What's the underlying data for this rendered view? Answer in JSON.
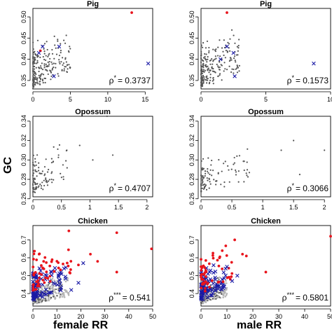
{
  "figure": {
    "ylabel": "GC",
    "xlabels": {
      "female": "female RR",
      "male": "male RR"
    }
  },
  "colors": {
    "gray": "#555555",
    "lightgray": "#b5b5b5",
    "red": "#e8141c",
    "blue": "#1a1aa6"
  },
  "chart_data": [
    {
      "id": "pig-female",
      "type": "scatter",
      "title": "Pig",
      "xlim": [
        0,
        16
      ],
      "ylim": [
        0.33,
        0.52
      ],
      "xticks": [
        0,
        5,
        10,
        15
      ],
      "yticks": [
        0.35,
        0.4,
        0.45,
        0.5
      ],
      "ytick_labels": [
        "0.35",
        "0.40",
        "0.45",
        "0.50"
      ],
      "annotation": {
        "prefix": "ρ",
        "stars": "*",
        "value": "= 0.3737"
      },
      "series": [
        {
          "style": "gray-dot",
          "n": 220,
          "xmax": 5,
          "ymin": 0.33,
          "ymax": 0.48
        },
        {
          "style": "red-dot",
          "points": [
            [
              13.2,
              0.51
            ],
            [
              1.0,
              0.42
            ]
          ]
        },
        {
          "style": "blue-x",
          "points": [
            [
              3.5,
              0.43
            ],
            [
              2.8,
              0.36
            ],
            [
              0.8,
              0.415
            ],
            [
              15.4,
              0.39
            ],
            [
              1.3,
              0.43
            ]
          ]
        }
      ]
    },
    {
      "id": "pig-male",
      "type": "scatter",
      "title": "Pig",
      "xlim": [
        0,
        10
      ],
      "ylim": [
        0.33,
        0.52
      ],
      "xticks": [
        0,
        5,
        10
      ],
      "yticks": [
        0.35,
        0.4,
        0.45,
        0.5
      ],
      "ytick_labels": [
        "0.35",
        "0.40",
        "0.45",
        "0.50"
      ],
      "annotation": {
        "prefix": "ρ",
        "stars": "*",
        "value": "= 0.1573"
      },
      "series": [
        {
          "style": "gray-dot",
          "n": 220,
          "xmax": 3,
          "ymin": 0.33,
          "ymax": 0.48
        },
        {
          "style": "red-dot",
          "points": [
            [
              2.0,
              0.51
            ]
          ]
        },
        {
          "style": "blue-x",
          "points": [
            [
              2.0,
              0.43
            ],
            [
              2.5,
              0.415
            ],
            [
              8.7,
              0.39
            ],
            [
              1.5,
              0.4
            ],
            [
              2.6,
              0.36
            ]
          ]
        }
      ]
    },
    {
      "id": "opossum-female",
      "type": "scatter",
      "title": "Opossum",
      "xlim": [
        0,
        2.1
      ],
      "ylim": [
        0.262,
        0.345
      ],
      "xticks": [
        0,
        0.5,
        1.0,
        1.5,
        2.0
      ],
      "xtick_labels": [
        "0",
        "0.5",
        "1",
        "1.5",
        "2"
      ],
      "yticks": [
        0.26,
        0.28,
        0.3,
        0.32,
        0.34
      ],
      "ytick_labels": [
        "0.26",
        "0.28",
        "0.30",
        "0.32",
        "0.34"
      ],
      "annotation": {
        "prefix": "ρ",
        "stars": "*",
        "value": "= 0.4707"
      },
      "series": [
        {
          "style": "gray-dot",
          "n": 100,
          "xmax": 0.6,
          "ymin": 0.265,
          "ymax": 0.32
        },
        {
          "style": "gray-dot",
          "points": [
            [
              1.3,
              0.345
            ],
            [
              1.4,
              0.305
            ],
            [
              0.82,
              0.315
            ],
            [
              1.05,
              0.3
            ],
            [
              0.45,
              0.305
            ]
          ]
        }
      ]
    },
    {
      "id": "opossum-male",
      "type": "scatter",
      "title": "Opossum",
      "xlim": [
        0,
        2.1
      ],
      "ylim": [
        0.262,
        0.345
      ],
      "xticks": [
        0,
        0.5,
        1.0,
        1.5,
        2.0
      ],
      "xtick_labels": [
        "0",
        "0.5",
        "1",
        "1.5",
        "2"
      ],
      "yticks": [
        0.26,
        0.28,
        0.3,
        0.32,
        0.34
      ],
      "ytick_labels": [
        "0.26",
        "0.28",
        "0.30",
        "0.32",
        "0.34"
      ],
      "annotation": {
        "prefix": "ρ",
        "stars": "*",
        "value": "= 0.3066"
      },
      "series": [
        {
          "style": "gray-dot",
          "n": 100,
          "xmax": 0.8,
          "ymin": 0.265,
          "ymax": 0.315
        },
        {
          "style": "gray-dot",
          "points": [
            [
              1.3,
              0.31
            ],
            [
              1.6,
              0.285
            ],
            [
              0.95,
              0.345
            ],
            [
              2.0,
              0.31
            ],
            [
              1.5,
              0.32
            ]
          ]
        }
      ]
    },
    {
      "id": "chicken-female",
      "type": "scatter",
      "title": "Chicken",
      "xlim": [
        0,
        50
      ],
      "ylim": [
        0.33,
        0.78
      ],
      "xticks": [
        0,
        10,
        20,
        30,
        40,
        50
      ],
      "yticks": [
        0.4,
        0.5,
        0.6,
        0.7
      ],
      "ytick_labels": [
        "0.4",
        "0.5",
        "0.6",
        "0.7"
      ],
      "annotation": {
        "prefix": "ρ",
        "stars": "***",
        "value": "= 0.541"
      },
      "series": [
        {
          "style": "lightgray-dot",
          "n": 300,
          "xmax": 15,
          "ymin": 0.34,
          "ymax": 0.52
        },
        {
          "style": "gray-dot",
          "n": 80,
          "xmax": 12,
          "ymin": 0.34,
          "ymax": 0.5
        },
        {
          "style": "blue-x",
          "n": 90,
          "xmax": 14,
          "ymin": 0.36,
          "ymax": 0.62
        },
        {
          "style": "red-dot",
          "n": 55,
          "xmax": 16,
          "ymin": 0.4,
          "ymax": 0.72
        },
        {
          "style": "red-dot",
          "points": [
            [
              49.5,
              0.65
            ],
            [
              35.0,
              0.74
            ],
            [
              35.0,
              0.52
            ],
            [
              24.0,
              0.62
            ],
            [
              27.0,
              0.58
            ],
            [
              15.0,
              0.75
            ],
            [
              19.0,
              0.56
            ]
          ]
        },
        {
          "style": "blue-x",
          "points": [
            [
              19.0,
              0.46
            ],
            [
              21.0,
              0.57
            ],
            [
              13.0,
              0.54
            ],
            [
              16.0,
              0.42
            ]
          ]
        }
      ]
    },
    {
      "id": "chicken-male",
      "type": "scatter",
      "title": "Chicken",
      "xlim": [
        0,
        50
      ],
      "ylim": [
        0.33,
        0.78
      ],
      "xticks": [
        0,
        10,
        20,
        30,
        40,
        50
      ],
      "yticks": [
        0.4,
        0.5,
        0.6,
        0.7
      ],
      "ytick_labels": [
        "0.4",
        "0.5",
        "0.6",
        "0.7"
      ],
      "annotation": {
        "prefix": "ρ",
        "stars": "***",
        "value": "= 0.5801"
      },
      "series": [
        {
          "style": "lightgray-dot",
          "n": 300,
          "xmax": 10,
          "ymin": 0.34,
          "ymax": 0.52
        },
        {
          "style": "gray-dot",
          "n": 80,
          "xmax": 8,
          "ymin": 0.34,
          "ymax": 0.5
        },
        {
          "style": "blue-x",
          "n": 90,
          "xmax": 10,
          "ymin": 0.36,
          "ymax": 0.62
        },
        {
          "style": "red-dot",
          "n": 55,
          "xmax": 12,
          "ymin": 0.4,
          "ymax": 0.72
        },
        {
          "style": "red-dot",
          "points": [
            [
              25.0,
              0.52
            ],
            [
              17.5,
              0.61
            ],
            [
              13.0,
              0.7
            ],
            [
              16.0,
              0.62
            ],
            [
              50.0,
              0.72
            ]
          ]
        },
        {
          "style": "blue-x",
          "points": [
            [
              12.0,
              0.47
            ],
            [
              14.0,
              0.5
            ],
            [
              10.0,
              0.55
            ]
          ]
        }
      ]
    }
  ]
}
